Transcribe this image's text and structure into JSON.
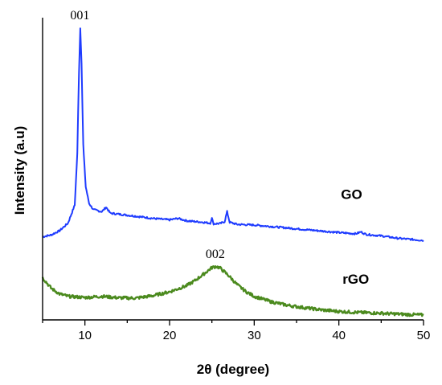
{
  "chart_data": {
    "type": "line",
    "title": "",
    "xlabel": "2θ (degree)",
    "ylabel": "Intensity (a.u)",
    "xlim": [
      5,
      50
    ],
    "ylim": [
      0,
      100
    ],
    "xticks": [
      10,
      20,
      30,
      40,
      50
    ],
    "xtick_labels": [
      "10",
      "20",
      "30",
      "40",
      "50"
    ],
    "grid": false,
    "series": [
      {
        "name": "GO",
        "color": "#1f3cff",
        "points": [
          [
            5,
            27.5
          ],
          [
            6,
            28.1
          ],
          [
            7,
            29.5
          ],
          [
            8,
            32.0
          ],
          [
            8.8,
            38.0
          ],
          [
            9.1,
            55.0
          ],
          [
            9.3,
            82.0
          ],
          [
            9.45,
            96.5
          ],
          [
            9.6,
            85.0
          ],
          [
            9.8,
            58.0
          ],
          [
            10.1,
            44.0
          ],
          [
            10.5,
            38.5
          ],
          [
            11,
            36.5
          ],
          [
            12,
            35.8
          ],
          [
            12.5,
            37.3
          ],
          [
            13,
            35.3
          ],
          [
            14,
            35.0
          ],
          [
            16,
            34.3
          ],
          [
            18,
            33.6
          ],
          [
            20,
            33.1
          ],
          [
            21,
            33.6
          ],
          [
            22,
            32.8
          ],
          [
            24,
            32.3
          ],
          [
            24.8,
            32.0
          ],
          [
            25.0,
            33.6
          ],
          [
            25.2,
            31.8
          ],
          [
            26,
            31.9
          ],
          [
            26.5,
            32.5
          ],
          [
            26.8,
            35.8
          ],
          [
            27.1,
            32.3
          ],
          [
            28,
            31.6
          ],
          [
            30,
            31.4
          ],
          [
            32,
            30.9
          ],
          [
            34,
            30.4
          ],
          [
            36,
            29.9
          ],
          [
            38,
            29.4
          ],
          [
            40,
            28.9
          ],
          [
            42,
            28.5
          ],
          [
            42.6,
            29.1
          ],
          [
            43.2,
            28.3
          ],
          [
            45,
            27.8
          ],
          [
            47,
            27.0
          ],
          [
            50,
            26.3
          ]
        ]
      },
      {
        "name": "rGO",
        "color": "#4b8a1e",
        "points": [
          [
            5,
            14.0
          ],
          [
            6,
            10.5
          ],
          [
            7,
            8.6
          ],
          [
            8,
            7.8
          ],
          [
            10,
            7.4
          ],
          [
            12,
            7.8
          ],
          [
            14,
            7.3
          ],
          [
            16,
            7.2
          ],
          [
            18,
            8.0
          ],
          [
            20,
            9.3
          ],
          [
            22,
            11.3
          ],
          [
            23,
            13.0
          ],
          [
            24,
            15.1
          ],
          [
            25,
            17.3
          ],
          [
            25.5,
            17.7
          ],
          [
            26,
            17.1
          ],
          [
            27,
            14.6
          ],
          [
            28,
            11.6
          ],
          [
            29,
            9.4
          ],
          [
            30,
            7.8
          ],
          [
            32,
            6.0
          ],
          [
            34,
            4.8
          ],
          [
            36,
            4.0
          ],
          [
            38,
            3.3
          ],
          [
            40,
            2.8
          ],
          [
            42,
            2.5
          ],
          [
            45,
            2.2
          ],
          [
            48,
            1.8
          ],
          [
            50,
            1.6
          ]
        ]
      }
    ],
    "annotations": [
      {
        "text": "001",
        "x": 9.4,
        "y": 99.5
      },
      {
        "text": "002",
        "x": 25.4,
        "y": 20.5
      }
    ],
    "series_labels": [
      {
        "text": "GO",
        "x": 41.5,
        "y": 40.0
      },
      {
        "text": "rGO",
        "x": 42.0,
        "y": 12.0
      }
    ]
  }
}
